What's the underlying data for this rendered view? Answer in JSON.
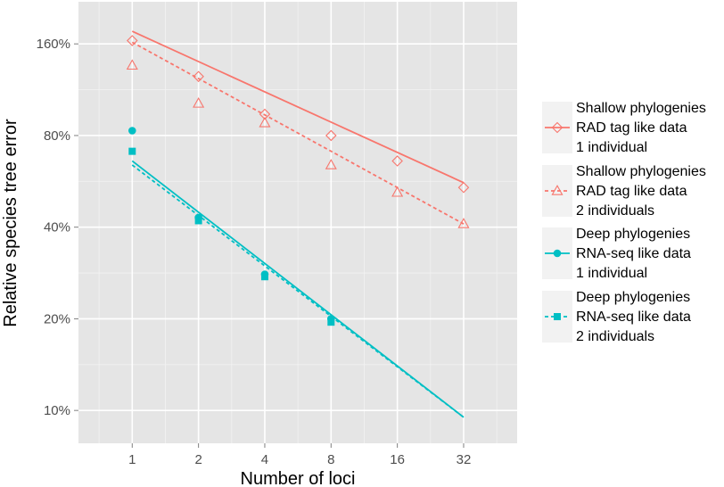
{
  "chart_data": {
    "type": "scatter",
    "xlabel": "Number of loci",
    "ylabel": "Relative species tree error",
    "x_scale": "log2",
    "y_scale": "log",
    "x_ticks": [
      1,
      2,
      4,
      8,
      16,
      32
    ],
    "x_tick_labels": [
      "1",
      "2",
      "4",
      "8",
      "16",
      "32"
    ],
    "y_ticks": [
      10,
      20,
      40,
      80,
      160
    ],
    "y_tick_labels": [
      "10%",
      "20%",
      "40%",
      "80%",
      "160%"
    ],
    "xlim": [
      0.57,
      56
    ],
    "ylim": [
      7.8,
      220
    ],
    "grid": true,
    "legend_position": "right",
    "series": [
      {
        "name": "Shallow phylogenies RAD tag like data 1 individual",
        "label_lines": [
          "Shallow phylogenies",
          "RAD tag like data",
          "1 individual"
        ],
        "color": "#F8766D",
        "marker": "diamond",
        "line": "solid",
        "x": [
          1,
          2,
          4,
          8,
          16,
          32
        ],
        "values": [
          164,
          125,
          94,
          80,
          66,
          54
        ],
        "fit_line": [
          [
            1,
            176
          ],
          [
            32,
            56
          ]
        ]
      },
      {
        "name": "Shallow phylogenies RAD tag like data 2 individuals",
        "label_lines": [
          "Shallow phylogenies",
          "RAD tag like data",
          "2 individuals"
        ],
        "color": "#F8766D",
        "marker": "triangle",
        "line": "dashed",
        "x": [
          1,
          2,
          4,
          8,
          16,
          32
        ],
        "values": [
          136,
          102,
          88,
          64,
          52,
          41
        ],
        "fit_line": [
          [
            1,
            162
          ],
          [
            32,
            41
          ]
        ]
      },
      {
        "name": "Deep phylogenies RNA-seq like data 1 individual",
        "label_lines": [
          "Deep phylogenies",
          "RNA-seq like data",
          "1 individual"
        ],
        "color": "#00BFC4",
        "marker": "circle",
        "line": "solid",
        "x": [
          1,
          2,
          4,
          8
        ],
        "values": [
          83,
          43,
          28,
          20
        ],
        "fit_line": [
          [
            1,
            66
          ],
          [
            32,
            9.5
          ]
        ]
      },
      {
        "name": "Deep phylogenies RNA-seq like data 2 individuals",
        "label_lines": [
          "Deep phylogenies",
          "RNA-seq like data",
          "2 individuals"
        ],
        "color": "#00BFC4",
        "marker": "square",
        "line": "dashed",
        "x": [
          1,
          2,
          4,
          8
        ],
        "values": [
          71,
          42,
          27.5,
          19.5
        ],
        "fit_line": [
          [
            1,
            64
          ],
          [
            32,
            9.5
          ]
        ]
      }
    ]
  }
}
